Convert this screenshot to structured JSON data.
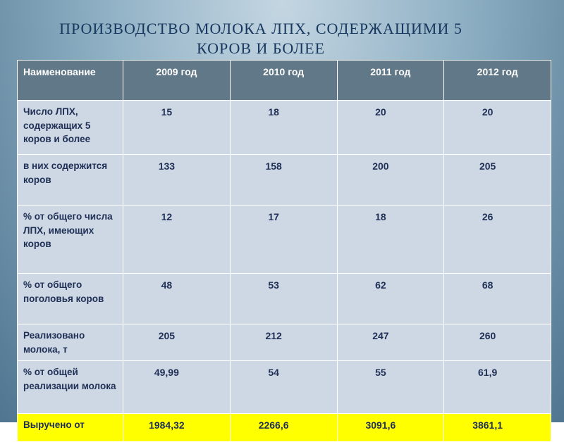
{
  "header": {
    "title_line1": "ПРОИЗВОДСТВО МОЛОКА ЛПХ, СОДЕРЖАЩИМИ 5",
    "title_line2": "КОРОВ И БОЛЕЕ"
  },
  "table": {
    "columns": [
      "Наименование",
      "2009 год",
      "2010 год",
      "2011 год",
      "2012 год"
    ],
    "rows": [
      [
        "Число ЛПХ, содержащих 5 коров и более",
        "15",
        "18",
        "20",
        "20"
      ],
      [
        "в них содержится коров",
        "133",
        "158",
        "200",
        "205"
      ],
      [
        "% от общего числа ЛПХ, имеющих коров",
        "12",
        "17",
        "18",
        "26"
      ],
      [
        "% от общего поголовья коров",
        "48",
        "53",
        "62",
        "68"
      ],
      [
        "Реализовано молока, т",
        "205",
        "212",
        "247",
        "260"
      ],
      [
        "% от общей реализации молока",
        "49,99",
        "54",
        "55",
        "61,9"
      ],
      [
        "Выручено от",
        "1984,32",
        "2266,6",
        "3091,6",
        "3861,1"
      ]
    ]
  }
}
